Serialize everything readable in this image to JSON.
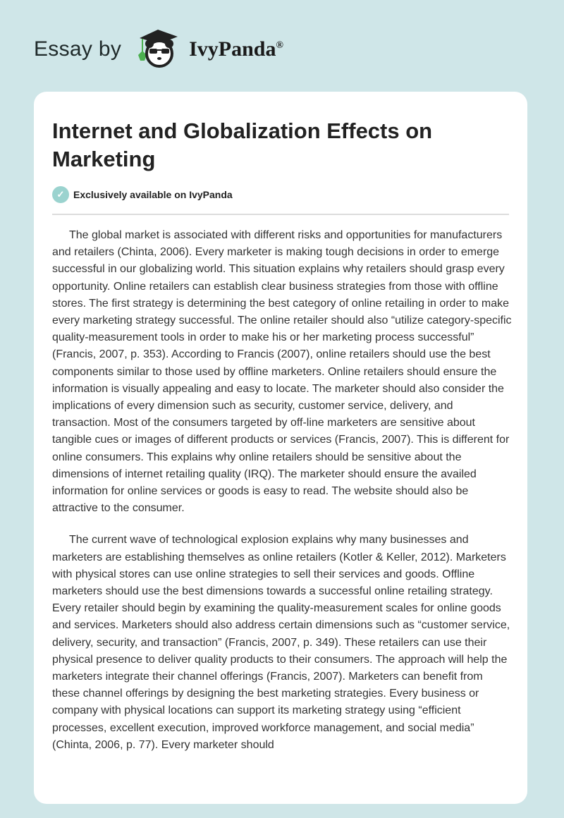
{
  "header": {
    "prefix": "Essay by",
    "brand": "IvyPanda",
    "registered": "®",
    "logo_icon": "panda-graduate-logo"
  },
  "article": {
    "title": "Internet and Globalization Effects on Marketing",
    "exclusive_label": "Exclusively available on IvyPanda",
    "accent_color": "#9bd3cf",
    "paragraphs": [
      "The global market is associated with different risks and opportunities for manufacturers and retailers (Chinta, 2006). Every marketer is making tough decisions in order to emerge successful in our globalizing world. This situation explains why retailers should grasp every opportunity. Online retailers can establish clear business strategies from those with offline stores. The first strategy is determining the best category of online retailing in order to make every marketing strategy successful. The online retailer should also “utilize category-specific quality-measurement tools in order to make his or her marketing process successful” (Francis, 2007, p. 353). According to Francis (2007), online retailers should use the best components similar to those used by offline marketers. Online retailers should ensure the information is visually appealing and easy to locate. The marketer should also consider the implications of every dimension such as security, customer service, delivery, and transaction. Most of the consumers targeted by off-line marketers are sensitive about tangible cues or images of different products or services (Francis, 2007). This is different for online consumers. This explains why online retailers should be sensitive about the dimensions of internet retailing quality (IRQ). The marketer should ensure the availed information for online services or goods is easy to read. The website should also be attractive to the consumer.",
      "The current wave of technological explosion explains why many businesses and marketers are establishing themselves as online retailers (Kotler & Keller, 2012). Marketers with physical stores can use online strategies to sell their services and goods. Offline marketers should use the best dimensions towards a successful online retailing strategy. Every retailer should begin by examining the quality-measurement scales for online goods and services. Marketers should also address certain dimensions such as “customer service, delivery, security, and transaction” (Francis, 2007, p. 349). These retailers can use their physical presence to deliver quality products to their consumers. The approach will help the marketers integrate their channel offerings (Francis, 2007). Marketers can benefit from these channel offerings by designing the best marketing strategies. Every business or company with physical locations can support its marketing strategy using “efficient processes, excellent execution, improved workforce management, and social media” (Chinta, 2006, p. 77). Every marketer should"
    ]
  }
}
